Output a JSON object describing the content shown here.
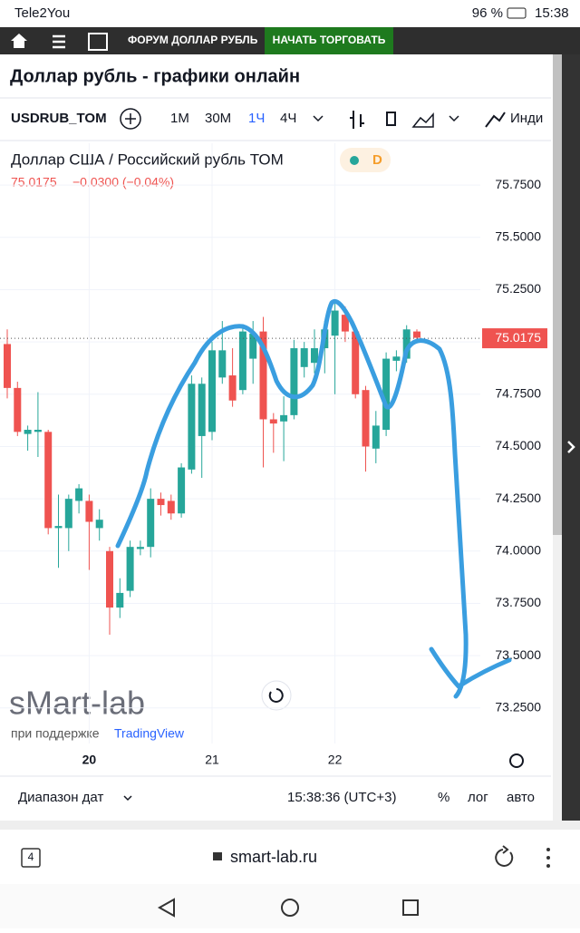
{
  "status_bar": {
    "carrier": "Tele2You",
    "battery": "96 %",
    "time": "15:38"
  },
  "nav": {
    "forum": "ФОРУМ ДОЛЛАР РУБЛЬ",
    "trade": "НАЧАТЬ ТОРГОВАТЬ"
  },
  "page": {
    "title": "Доллар рубль - графики онлайн"
  },
  "toolbar": {
    "symbol": "USDRUB_TOM",
    "intervals": [
      "1M",
      "30M",
      "1Ч",
      "4Ч"
    ],
    "indicators": "Инди"
  },
  "chart_data": {
    "type": "candlestick",
    "title": "Доллар США / Российский рубль ТОМ",
    "badge": "D",
    "legend": {
      "price": "75.0175",
      "change": "−0.0300 (−0.04%)"
    },
    "categories": [
      null,
      null,
      null,
      null,
      null,
      null,
      null,
      null,
      "20",
      null,
      null,
      null,
      null,
      null,
      null,
      null,
      null,
      null,
      null,
      null,
      "21",
      null,
      null,
      null,
      null,
      null,
      null,
      null,
      null,
      null,
      null,
      null,
      "22",
      null,
      null,
      null,
      null,
      null,
      null,
      null,
      null
    ],
    "open": [
      74.99,
      74.78,
      74.56,
      74.57,
      74.57,
      74.11,
      74.11,
      74.24,
      74.24,
      74.11,
      74.0,
      73.73,
      73.81,
      74.01,
      74.02,
      74.25,
      74.24,
      74.18,
      74.39,
      74.55,
      74.57,
      74.83,
      74.84,
      74.77,
      74.92,
      75.05,
      74.63,
      74.62,
      74.65,
      74.88,
      74.9,
      74.97,
      75.03,
      75.13,
      75.05,
      74.77,
      74.49,
      74.58,
      74.91,
      74.92,
      75.05
    ],
    "high": [
      75.06,
      74.81,
      74.6,
      74.76,
      74.58,
      74.27,
      74.27,
      74.32,
      74.27,
      74.2,
      74.02,
      73.87,
      74.05,
      74.05,
      74.3,
      74.28,
      74.27,
      74.42,
      74.84,
      74.83,
      75.0,
      75.1,
      74.97,
      75.08,
      75.1,
      75.12,
      74.66,
      74.74,
      75.01,
      75.0,
      75.06,
      75.1,
      75.2,
      75.17,
      75.07,
      74.79,
      74.67,
      74.95,
      74.96,
      75.08,
      75.06
    ],
    "low": [
      74.73,
      74.55,
      74.48,
      74.45,
      74.08,
      73.92,
      74.0,
      74.18,
      73.91,
      74.05,
      73.6,
      73.68,
      73.78,
      73.98,
      73.97,
      74.17,
      74.15,
      74.16,
      74.37,
      74.35,
      74.53,
      74.8,
      74.69,
      74.75,
      74.8,
      74.4,
      74.47,
      74.43,
      74.63,
      74.83,
      74.85,
      74.85,
      74.75,
      75.0,
      74.73,
      74.38,
      74.42,
      74.55,
      74.86,
      74.9,
      75.0
    ],
    "close": [
      74.78,
      74.57,
      74.58,
      74.58,
      74.11,
      74.12,
      74.25,
      74.3,
      74.14,
      74.15,
      73.73,
      73.8,
      74.02,
      74.02,
      74.25,
      74.22,
      74.18,
      74.4,
      74.8,
      74.8,
      74.96,
      74.96,
      74.72,
      75.05,
      75.04,
      74.63,
      74.61,
      74.65,
      74.97,
      74.97,
      74.97,
      75.06,
      75.15,
      75.05,
      74.75,
      74.5,
      74.6,
      74.92,
      74.93,
      75.06,
      75.02
    ],
    "up_color": "#26a69a",
    "down_color": "#ef5350",
    "last_price": 75.0175,
    "ylim": [
      73.08,
      75.95
    ],
    "yticks": [
      {
        "value": 73.25,
        "label": "73.2500"
      },
      {
        "value": 73.5,
        "label": "73.5000"
      },
      {
        "value": 73.75,
        "label": "73.7500"
      },
      {
        "value": 74,
        "label": "74.0000"
      },
      {
        "value": 74.25,
        "label": "74.2500"
      },
      {
        "value": 74.5,
        "label": "74.5000"
      },
      {
        "value": 74.75,
        "label": "74.7500"
      },
      {
        "value": 75,
        "label": "75.0000"
      },
      {
        "value": 75.25,
        "label": "75.2500"
      },
      {
        "value": 75.5,
        "label": "75.5000"
      },
      {
        "value": 75.75,
        "label": "75.7500"
      }
    ],
    "watermark": "sMart-lab",
    "supported_by": "при поддержке",
    "provider": "TradingView"
  },
  "footer": {
    "range": "Диапазон дат",
    "clock": "15:38:36 (UTC+3)",
    "percent": "%",
    "log": "лог",
    "auto": "авто"
  },
  "browser": {
    "tabs": "4",
    "url": "smart-lab.ru"
  }
}
